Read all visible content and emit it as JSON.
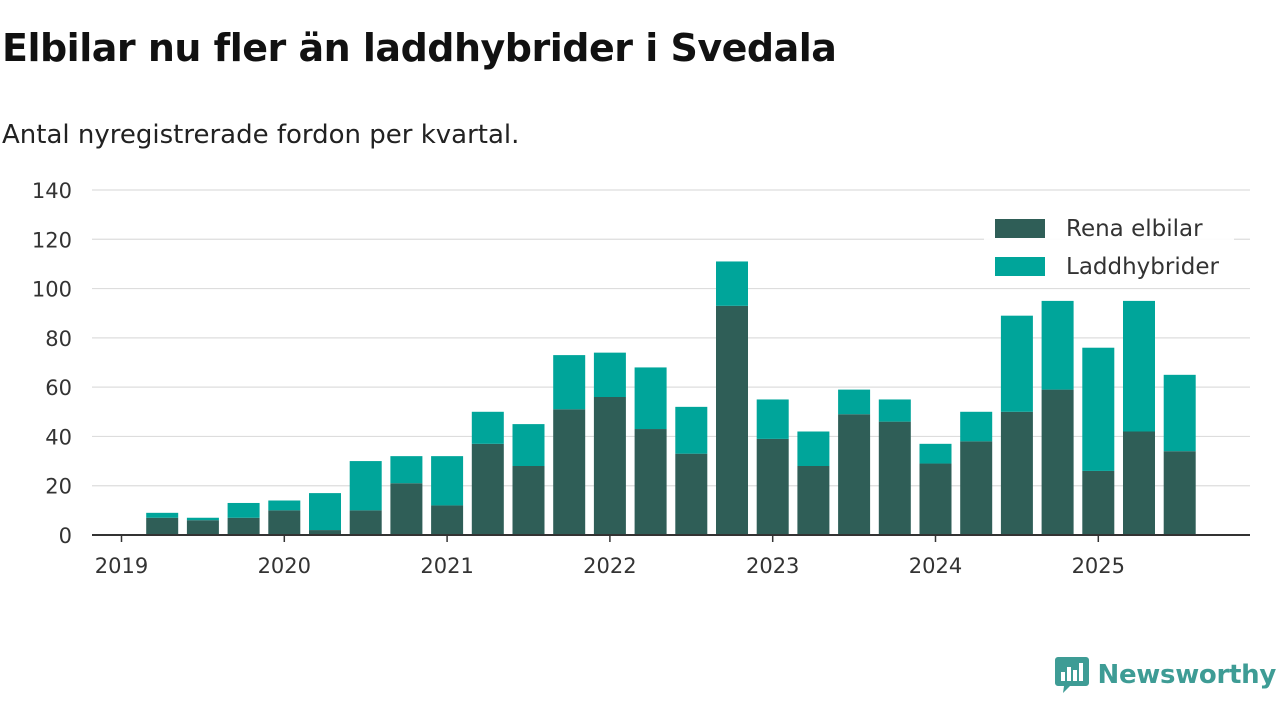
{
  "header": {
    "title": "Elbilar nu fler än laddhybrider i Svedala",
    "subtitle": "Antal nyregistrerade fordon per kvartal."
  },
  "brand": {
    "name": "Newsworthy",
    "icon": "newsworthy-logo-icon",
    "color": "#3e9c95"
  },
  "colors": {
    "rena": "#2f5e57",
    "ladd": "#00a59a",
    "grid": "#dddddd",
    "axis": "#333333"
  },
  "chart_data": {
    "type": "bar",
    "stacked": true,
    "title": "Elbilar nu fler än laddhybrider i Svedala",
    "subtitle": "Antal nyregistrerade fordon per kvartal.",
    "xlabel": "",
    "ylabel": "",
    "ylim": [
      0,
      140
    ],
    "yticks": [
      "0",
      "20",
      "40",
      "60",
      "80",
      "100",
      "120",
      "140"
    ],
    "xticks": [
      "2019",
      "2020",
      "2021",
      "2022",
      "2023",
      "2024",
      "2025"
    ],
    "categories": [
      "2019 Q1",
      "2019 Q2",
      "2019 Q3",
      "2019 Q4",
      "2020 Q1",
      "2020 Q2",
      "2020 Q3",
      "2020 Q4",
      "2021 Q1",
      "2021 Q2",
      "2021 Q3",
      "2021 Q4",
      "2022 Q1",
      "2022 Q2",
      "2022 Q3",
      "2022 Q4",
      "2023 Q1",
      "2023 Q2",
      "2023 Q3",
      "2023 Q4",
      "2024 Q1",
      "2024 Q2",
      "2024 Q3",
      "2024 Q4",
      "2025 Q1",
      "2025 Q2",
      "2025 Q3"
    ],
    "series": [
      {
        "name": "Rena elbilar",
        "values": [
          0,
          7,
          6,
          7,
          10,
          2,
          10,
          21,
          12,
          37,
          28,
          51,
          56,
          43,
          33,
          93,
          39,
          28,
          49,
          46,
          29,
          38,
          50,
          59,
          26,
          42,
          34
        ]
      },
      {
        "name": "Laddhybrider",
        "values": [
          0,
          2,
          1,
          6,
          4,
          15,
          20,
          11,
          20,
          13,
          17,
          22,
          18,
          25,
          19,
          18,
          16,
          14,
          10,
          9,
          8,
          12,
          39,
          36,
          50,
          53,
          31
        ]
      }
    ],
    "legend": {
      "position": "top-right",
      "entries": [
        "Rena elbilar",
        "Laddhybrider"
      ]
    },
    "grid": true
  }
}
